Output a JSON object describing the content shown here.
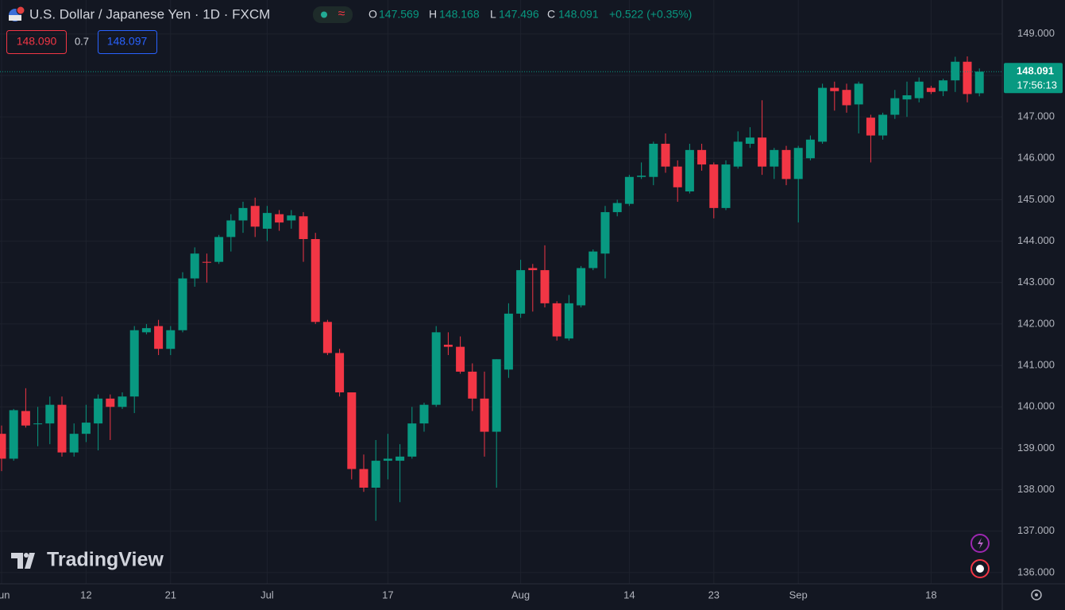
{
  "chart_data": {
    "type": "candlestick",
    "title": "U.S. Dollar / Japanese Yen · 1D · FXCM",
    "ohlc_labels": [
      "O",
      "H",
      "L",
      "C"
    ],
    "change": "+0.522 (+0.35%)",
    "bid": "148.090",
    "spread": "0.7",
    "ask": "148.097",
    "countdown": "17:56:13",
    "watermark": "TradingView",
    "up_color": "#089981",
    "down_color": "#f23645",
    "categories": [
      "Jun",
      null,
      null,
      null,
      null,
      null,
      null,
      "12",
      null,
      null,
      null,
      null,
      null,
      null,
      "21",
      null,
      null,
      null,
      null,
      null,
      null,
      null,
      "Jul",
      null,
      null,
      null,
      null,
      null,
      null,
      null,
      null,
      null,
      "17",
      null,
      null,
      null,
      null,
      null,
      null,
      null,
      null,
      null,
      null,
      "Aug",
      null,
      null,
      null,
      null,
      null,
      null,
      null,
      null,
      "14",
      null,
      null,
      null,
      null,
      null,
      null,
      "23",
      null,
      null,
      null,
      null,
      null,
      null,
      "Sep",
      null,
      null,
      null,
      null,
      null,
      null,
      null,
      null,
      null,
      null,
      "18",
      null,
      null,
      null,
      null
    ],
    "open": [
      139.35,
      138.75,
      139.9,
      139.58,
      139.6,
      140.05,
      138.9,
      139.35,
      139.6,
      140.2,
      140.0,
      140.25,
      141.8,
      141.95,
      141.4,
      141.85,
      143.1,
      143.5,
      143.5,
      144.1,
      144.5,
      144.85,
      144.3,
      144.65,
      144.5,
      144.6,
      144.05,
      142.05,
      141.3,
      140.35,
      138.5,
      138.05,
      138.7,
      138.7,
      138.8,
      139.6,
      140.05,
      141.5,
      141.45,
      140.85,
      140.2,
      139.4,
      140.9,
      142.25,
      143.35,
      143.3,
      142.5,
      141.65,
      142.45,
      143.35,
      143.7,
      144.7,
      144.9,
      145.55,
      145.55,
      146.35,
      145.8,
      145.2,
      146.2,
      145.85,
      144.8,
      145.8,
      146.35,
      146.5,
      145.8,
      146.2,
      145.5,
      146.0,
      146.4,
      147.7,
      147.65,
      147.3,
      146.98,
      146.55,
      147.05,
      147.42,
      147.45,
      147.7,
      147.62,
      147.88,
      148.33,
      147.569
    ],
    "high": [
      139.55,
      139.95,
      140.45,
      140.0,
      140.25,
      140.25,
      139.6,
      140.05,
      140.3,
      140.3,
      140.35,
      141.95,
      142.0,
      142.1,
      141.95,
      143.25,
      143.85,
      143.7,
      144.15,
      144.65,
      144.95,
      145.05,
      144.85,
      144.75,
      144.75,
      144.7,
      144.2,
      142.1,
      141.4,
      140.35,
      138.85,
      139.2,
      139.35,
      139.1,
      140.0,
      140.1,
      141.95,
      141.8,
      141.7,
      141.05,
      140.85,
      141.15,
      142.5,
      143.55,
      143.45,
      143.9,
      142.55,
      142.7,
      143.4,
      143.8,
      144.85,
      145.0,
      145.6,
      145.9,
      146.4,
      146.6,
      145.95,
      146.35,
      146.35,
      145.9,
      145.95,
      146.65,
      146.75,
      147.4,
      146.25,
      146.3,
      146.3,
      146.55,
      147.8,
      147.85,
      147.8,
      147.85,
      147.05,
      147.1,
      147.65,
      147.85,
      147.95,
      147.75,
      147.92,
      148.45,
      148.46,
      148.168
    ],
    "low": [
      138.45,
      138.7,
      139.5,
      139.05,
      139.1,
      138.8,
      138.8,
      139.15,
      138.95,
      139.2,
      139.95,
      139.85,
      141.75,
      141.25,
      141.25,
      141.8,
      142.9,
      143.0,
      143.45,
      143.75,
      144.2,
      144.1,
      144.0,
      144.25,
      144.3,
      143.5,
      142.0,
      141.25,
      140.25,
      138.25,
      137.95,
      137.25,
      138.25,
      137.7,
      138.75,
      139.4,
      140.0,
      141.25,
      140.8,
      139.9,
      138.8,
      138.05,
      140.7,
      142.15,
      142.3,
      142.4,
      141.6,
      141.6,
      142.4,
      143.3,
      143.1,
      144.6,
      144.85,
      145.5,
      145.35,
      145.65,
      144.95,
      145.15,
      145.7,
      144.55,
      144.75,
      145.75,
      146.25,
      145.6,
      145.5,
      145.35,
      144.45,
      145.95,
      146.35,
      147.15,
      147.1,
      146.6,
      145.9,
      146.45,
      146.95,
      147.0,
      147.35,
      147.55,
      147.5,
      147.6,
      147.35,
      147.496
    ],
    "close": [
      138.75,
      139.92,
      139.55,
      139.6,
      140.05,
      138.9,
      139.35,
      139.62,
      140.2,
      140.0,
      140.25,
      141.85,
      141.9,
      141.4,
      141.85,
      143.1,
      143.7,
      143.48,
      144.1,
      144.5,
      144.8,
      144.35,
      144.68,
      144.45,
      144.62,
      144.05,
      142.05,
      141.3,
      140.35,
      138.5,
      138.05,
      138.7,
      138.75,
      138.8,
      139.6,
      140.05,
      141.8,
      141.45,
      140.85,
      140.2,
      139.4,
      141.15,
      142.25,
      143.3,
      143.3,
      142.5,
      141.7,
      142.5,
      143.35,
      143.75,
      144.7,
      144.92,
      145.55,
      145.58,
      146.35,
      145.8,
      145.3,
      146.2,
      145.85,
      144.8,
      145.85,
      146.4,
      146.5,
      145.8,
      146.2,
      145.5,
      146.25,
      146.45,
      147.7,
      147.62,
      147.28,
      147.8,
      146.55,
      147.05,
      147.45,
      147.52,
      147.85,
      147.6,
      147.88,
      148.33,
      147.55,
      148.091
    ],
    "ylim": [
      135.73,
      149.82
    ],
    "yticks": [
      {
        "value": 136,
        "label": "136.000"
      },
      {
        "value": 137,
        "label": "137.000"
      },
      {
        "value": 138,
        "label": "138.000"
      },
      {
        "value": 139,
        "label": "139.000"
      },
      {
        "value": 140,
        "label": "140.000"
      },
      {
        "value": 141,
        "label": "141.000"
      },
      {
        "value": 142,
        "label": "142.000"
      },
      {
        "value": 143,
        "label": "143.000"
      },
      {
        "value": 144,
        "label": "144.000"
      },
      {
        "value": 145,
        "label": "145.000"
      },
      {
        "value": 146,
        "label": "146.000"
      },
      {
        "value": 147,
        "label": "147.000"
      },
      {
        "value": 148,
        "label": "148.000"
      },
      {
        "value": 149,
        "label": "149.000"
      }
    ],
    "grid": true
  }
}
